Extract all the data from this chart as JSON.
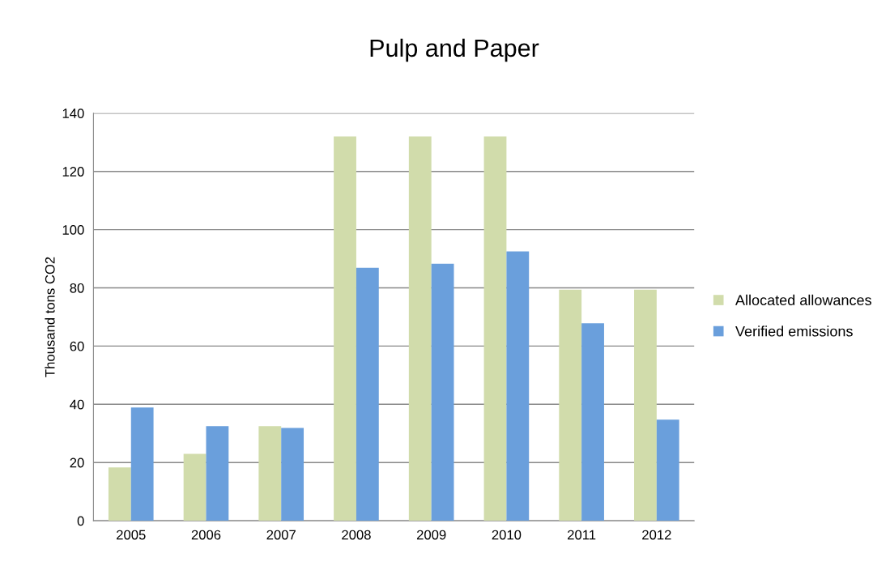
{
  "chart_data": {
    "type": "bar",
    "title": "Pulp and Paper",
    "ylabel": "Thousand tons CO2",
    "categories": [
      "2005",
      "2006",
      "2007",
      "2008",
      "2009",
      "2010",
      "2011",
      "2012"
    ],
    "series": [
      {
        "name": "Allocated allowances",
        "color": "#d1dcab",
        "values": [
          18.3,
          23,
          32.5,
          132,
          132,
          132,
          79.4,
          79.4
        ]
      },
      {
        "name": "Verified emissions",
        "color": "#6a9fdc",
        "values": [
          38.9,
          32.5,
          31.9,
          86.9,
          88.3,
          92.5,
          67.8,
          34.7
        ]
      }
    ],
    "ylim": [
      0,
      140
    ],
    "yticks": [
      0,
      20,
      40,
      60,
      80,
      100,
      120,
      140
    ],
    "grid": "y",
    "legend": "right"
  }
}
